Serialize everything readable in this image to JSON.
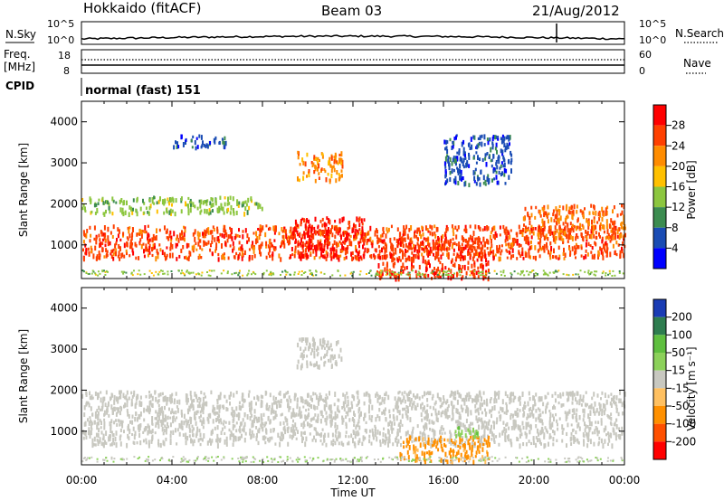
{
  "header": {
    "station": "Hokkaido (fitACF)",
    "beam": "Beam 03",
    "date": "21/Aug/2012"
  },
  "top_panels": {
    "nsky_label": "N.Sky",
    "nsky_ticks": [
      "10^5",
      "10^0"
    ],
    "nsearch_label": "N.Search",
    "nsearch_ticks": [
      "10^5",
      "10^0"
    ],
    "freq_label_line1": "Freq.",
    "freq_label_line2": "[MHz]",
    "freq_ticks": [
      "18",
      "8"
    ],
    "nave_label": "Nave",
    "nave_ticks": [
      "60",
      "0"
    ],
    "cpid_label": "CPID",
    "cpid_text": "normal (fast) 151"
  },
  "chart_data": [
    {
      "type": "heatmap",
      "panel": "power",
      "ylabel": "Slant Range [km]",
      "yticks": [
        1000,
        2000,
        3000,
        4000
      ],
      "ylim": [
        180,
        4500
      ],
      "xlabel": "Time UT",
      "xticks": [
        "00:00",
        "04:00",
        "08:00",
        "12:00",
        "16:00",
        "20:00",
        "00:00"
      ],
      "xlim_hours": [
        0,
        24
      ],
      "colorbar": {
        "label": "Power [dB]",
        "ticks": [
          "28",
          "24",
          "20",
          "16",
          "12",
          "8",
          "4"
        ],
        "colors": [
          "#ff0000",
          "#ff4000",
          "#ff8c00",
          "#ffc000",
          "#8cc63f",
          "#3c8c50",
          "#1a4cb4",
          "#0000ff"
        ]
      },
      "regions": [
        {
          "t": [
            0,
            24
          ],
          "r": [
            700,
            1500
          ],
          "level": 26
        },
        {
          "t": [
            9.2,
            12.5
          ],
          "r": [
            700,
            1700
          ],
          "level": 29
        },
        {
          "t": [
            13,
            18
          ],
          "r": [
            200,
            1200
          ],
          "level": 27
        },
        {
          "t": [
            19.5,
            24
          ],
          "r": [
            1200,
            2000
          ],
          "level": 24
        },
        {
          "t": [
            9.5,
            11.5
          ],
          "r": [
            2600,
            3300
          ],
          "level": 22
        },
        {
          "t": [
            16,
            19
          ],
          "r": [
            2500,
            3700
          ],
          "level": 6
        },
        {
          "t": [
            4,
            6.5
          ],
          "r": [
            3400,
            3700
          ],
          "level": 6
        },
        {
          "t": [
            0,
            8
          ],
          "r": [
            1800,
            2200
          ],
          "level": 14
        }
      ]
    },
    {
      "type": "heatmap",
      "panel": "velocity",
      "ylabel": "Slant Range [km]",
      "yticks": [
        1000,
        2000,
        3000,
        4000
      ],
      "ylim": [
        180,
        4500
      ],
      "xlabel": "Time UT",
      "xticks": [
        "00:00",
        "04:00",
        "08:00",
        "12:00",
        "16:00",
        "20:00",
        "00:00"
      ],
      "xlim_hours": [
        0,
        24
      ],
      "colorbar": {
        "label": "Velocity [m s⁻¹]",
        "ticks": [
          "200",
          "100",
          "50",
          "15",
          "-15",
          "-50",
          "-100",
          "-200"
        ],
        "colors": [
          "#1a3cb4",
          "#2e7d4f",
          "#5fbf3f",
          "#8cd15a",
          "#c8c8c0",
          "#ffc060",
          "#ff9000",
          "#ff5000",
          "#ff0000"
        ]
      },
      "regions": [
        {
          "t": [
            0,
            24
          ],
          "r": [
            700,
            2000
          ],
          "velocity": 0
        },
        {
          "t": [
            14,
            18
          ],
          "r": [
            300,
            900
          ],
          "velocity": -60
        },
        {
          "t": [
            16.5,
            17.5
          ],
          "r": [
            900,
            1200
          ],
          "velocity": 40
        },
        {
          "t": [
            9.5,
            11.5
          ],
          "r": [
            2600,
            3300
          ],
          "velocity": 0
        }
      ]
    }
  ]
}
